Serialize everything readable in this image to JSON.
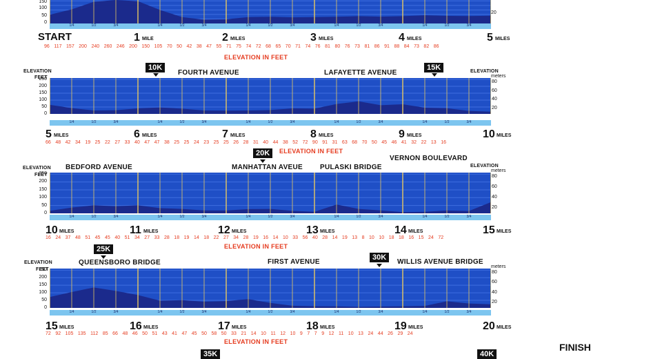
{
  "chart_data": [
    {
      "type": "area",
      "start_label": "START",
      "mile_labels": [
        "1",
        "2",
        "3",
        "4",
        "5"
      ],
      "first_mile_unit": "MILE",
      "mile_unit": "MILES",
      "axis_feet_ticks": [
        "150",
        "100",
        "50",
        "0"
      ],
      "axis_meter_ticks": [
        "20"
      ],
      "elevation_values_text": "96 117 157 200 240 260 246 200 150 105 70 50 42 38 47 55 71 75 74 72 68 65 70 71 74 76 81 80 76 73 81 86 91 88 84 73 82 86",
      "elevation_title": "ELEVATION IN FEET",
      "ylim": [
        0,
        260
      ],
      "x": [
        0,
        0.25,
        0.5,
        0.75,
        1,
        1.25,
        1.5,
        1.75,
        2,
        2.25,
        2.5,
        2.75,
        3,
        3.25,
        3.5,
        3.75,
        4,
        4.25,
        4.5,
        4.75,
        5
      ],
      "y": [
        96,
        157,
        240,
        260,
        246,
        150,
        70,
        42,
        47,
        71,
        74,
        68,
        70,
        74,
        81,
        76,
        81,
        91,
        84,
        82,
        86
      ]
    },
    {
      "type": "area",
      "start_mile": "5",
      "mile_labels": [
        "6",
        "7",
        "8",
        "9",
        "10"
      ],
      "mile_unit": "MILES",
      "y_title": "ELEVATION",
      "y_unit_left": "FEET",
      "y_title_right": "ELEVATION",
      "y_unit_right": "meters",
      "axis_feet_ticks": [
        "250",
        "200",
        "150",
        "100",
        "50",
        "0"
      ],
      "axis_meter_ticks": [
        "80",
        "60",
        "40",
        "20"
      ],
      "elevation_values_text": "66 48 42 34 19 25 22 27 33 40 47 47 38 25 25 24 23 25 25 26 28 31 40 44 38 52 72 90 91 31 63 68 70 50 45 46 41 32 22 13 16",
      "elevation_title": "ELEVATION IN FEET",
      "streets": [
        "FOURTH AVENUE",
        "LAFAYETTE AVENUE"
      ],
      "k_markers": [
        "10K",
        "15K"
      ],
      "ylim": [
        0,
        260
      ],
      "x": [
        5,
        5.25,
        5.5,
        5.75,
        6,
        6.25,
        6.5,
        6.75,
        7,
        7.25,
        7.5,
        7.75,
        8,
        8.25,
        8.5,
        8.75,
        9,
        9.25,
        9.5,
        9.75,
        10
      ],
      "y": [
        66,
        42,
        25,
        27,
        40,
        47,
        38,
        25,
        24,
        25,
        28,
        40,
        38,
        72,
        91,
        63,
        70,
        45,
        41,
        22,
        16
      ]
    },
    {
      "type": "area",
      "start_mile": "10",
      "mile_labels": [
        "11",
        "12",
        "13",
        "14",
        "15"
      ],
      "mile_unit": "MILES",
      "y_title": "ELEVATION",
      "y_unit_left": "FEET",
      "y_title_right": "ELEVATION",
      "y_unit_right": "meters",
      "axis_feet_ticks": [
        "250",
        "200",
        "150",
        "100",
        "50",
        "0"
      ],
      "axis_meter_ticks": [
        "80",
        "60",
        "40",
        "20"
      ],
      "elevation_values_text": "16 24 37 48 51 45 45 40 51 34 27 33 28 18 19 14 18 22 27 34 28 19 16 14 10 33 56 40 28 14 19 13 8 10 10 18 18 16 15 24 72",
      "elevation_title": "ELEVATION IN FEET",
      "streets": [
        "BEDFORD AVENUE",
        "MANHATTAN AVEUE",
        "PULASKI BRIDGE",
        "VERNON BOULEVARD"
      ],
      "k_markers": [
        "20K"
      ],
      "ylim": [
        0,
        260
      ],
      "x": [
        10,
        10.25,
        10.5,
        10.75,
        11,
        11.25,
        11.5,
        11.75,
        12,
        12.25,
        12.5,
        12.75,
        13,
        13.25,
        13.5,
        13.75,
        14,
        14.25,
        14.5,
        14.75,
        15
      ],
      "y": [
        16,
        37,
        51,
        45,
        51,
        33,
        28,
        19,
        18,
        27,
        28,
        16,
        10,
        56,
        28,
        19,
        8,
        10,
        18,
        15,
        72
      ]
    },
    {
      "type": "area",
      "start_mile": "15",
      "mile_labels": [
        "16",
        "17",
        "18",
        "19",
        "20"
      ],
      "mile_unit": "MILES",
      "y_title": "ELEVATION",
      "y_unit_left": "FEET",
      "y_unit_right": "meters",
      "axis_feet_ticks": [
        "250",
        "200",
        "150",
        "100",
        "50",
        "0"
      ],
      "axis_meter_ticks": [
        "80",
        "60",
        "40",
        "20"
      ],
      "elevation_values_text": "72 92 105 135 112 85 66 48 46 50 51 43 41 47 45 50 58 50 33 21 14 10 11 12 10 9 7 7 9 12 11 10 13 24 44 26 29 24",
      "elevation_title": "ELEVATION IN FEET",
      "streets": [
        "QUEENSBORO BRIDGE",
        "FIRST AVENUE",
        "WILLIS AVENUE BRIDGE"
      ],
      "k_markers": [
        "25K",
        "30K"
      ],
      "ylim": [
        0,
        260
      ],
      "x": [
        15,
        15.25,
        15.5,
        15.75,
        16,
        16.25,
        16.5,
        16.75,
        17,
        17.25,
        17.5,
        17.75,
        18,
        18.25,
        18.5,
        18.75,
        19,
        19.25,
        19.5,
        19.75,
        20
      ],
      "y": [
        72,
        105,
        135,
        112,
        85,
        48,
        51,
        41,
        45,
        58,
        33,
        14,
        11,
        10,
        7,
        9,
        11,
        13,
        44,
        29,
        24
      ]
    }
  ],
  "quarter_labels": [
    "1/4",
    "1/2",
    "3/4"
  ],
  "footer": {
    "finish_label": "FINISH",
    "k_markers": [
      "35K",
      "40K"
    ]
  },
  "colors": {
    "plot_bg": "#1f4fc6",
    "terrain": "#1b2a8c",
    "grid": "#e8c860",
    "strip": "#7dc5ef",
    "red_text": "#e53b1f"
  }
}
